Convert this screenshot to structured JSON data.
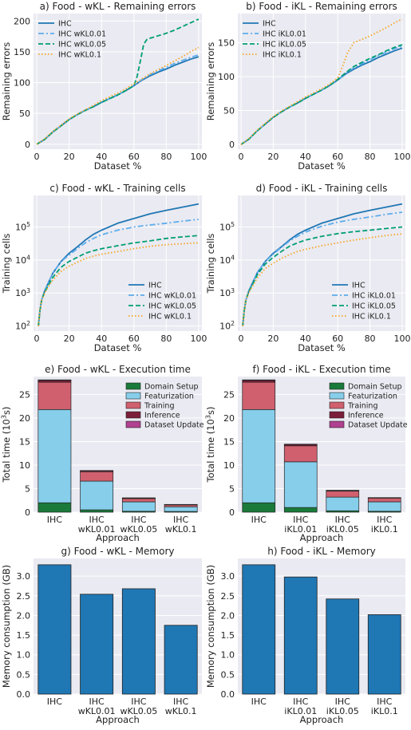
{
  "colors": {
    "plot_bg": "#EAEAF2",
    "grid": "#FFFFFF",
    "IHC": "#1F77B4",
    "KL0.01": "#5DADEC",
    "KL0.05": "#009E73",
    "KL0.1": "#F5A623",
    "domain_setup": "#1A7A3A",
    "featurization": "#87CEEB",
    "training": "#D0606E",
    "inference": "#7B1E3A",
    "dataset_update": "#B04090",
    "memory_bar": "#1F77B4"
  },
  "chart_data": [
    {
      "id": "a",
      "type": "line",
      "title": "a) Food - wKL - Remaining errors",
      "xlabel": "Dataset %",
      "ylabel": "Remaining errors",
      "xlim": [
        -2,
        102
      ],
      "ylim": [
        -8,
        212
      ],
      "xticks": [
        0,
        20,
        40,
        60,
        80,
        100
      ],
      "yticks": [
        0,
        50,
        100,
        150,
        200
      ],
      "grid": true,
      "legend": "top-left",
      "series": [
        {
          "name": "IHC",
          "style": "solid",
          "x": [
            0,
            5,
            10,
            15,
            20,
            25,
            30,
            35,
            40,
            45,
            50,
            55,
            60,
            65,
            70,
            75,
            80,
            85,
            90,
            95,
            100
          ],
          "y": [
            0,
            8,
            20,
            30,
            40,
            48,
            55,
            61,
            68,
            74,
            80,
            87,
            95,
            104,
            111,
            117,
            122,
            128,
            133,
            138,
            142
          ]
        },
        {
          "name": "IHC wKL0.01",
          "style": "dashdot",
          "x": [
            0,
            5,
            10,
            15,
            20,
            25,
            30,
            35,
            40,
            45,
            50,
            55,
            60,
            65,
            70,
            75,
            80,
            85,
            90,
            95,
            100
          ],
          "y": [
            0,
            8,
            20,
            30,
            40,
            48,
            55,
            61,
            68,
            74,
            80,
            87,
            95,
            105,
            113,
            119,
            125,
            131,
            136,
            141,
            145
          ]
        },
        {
          "name": "IHC wKL0.05",
          "style": "dashed",
          "x": [
            0,
            5,
            10,
            15,
            20,
            25,
            30,
            35,
            40,
            45,
            50,
            55,
            60,
            62,
            64,
            66,
            68,
            70,
            75,
            80,
            85,
            90,
            95,
            100
          ],
          "y": [
            0,
            8,
            20,
            30,
            40,
            48,
            55,
            61,
            68,
            74,
            80,
            87,
            95,
            110,
            135,
            162,
            170,
            172,
            176,
            180,
            185,
            191,
            197,
            203
          ]
        },
        {
          "name": "IHC wKL0.1",
          "style": "dotted",
          "x": [
            0,
            5,
            10,
            15,
            20,
            25,
            30,
            35,
            40,
            45,
            50,
            55,
            60,
            65,
            70,
            75,
            80,
            85,
            90,
            95,
            100
          ],
          "y": [
            0,
            9,
            21,
            31,
            41,
            49,
            56,
            63,
            71,
            77,
            83,
            90,
            98,
            106,
            114,
            121,
            128,
            135,
            142,
            150,
            157
          ]
        }
      ]
    },
    {
      "id": "b",
      "type": "line",
      "title": "b) Food - iKL - Remaining errors",
      "xlabel": "Dataset %",
      "ylabel": "Remaining errors",
      "xlim": [
        -2,
        102
      ],
      "ylim": [
        -7,
        193
      ],
      "xticks": [
        0,
        20,
        40,
        60,
        80,
        100
      ],
      "yticks": [
        0,
        50,
        100,
        150
      ],
      "grid": true,
      "legend": "top-left",
      "series": [
        {
          "name": "IHC",
          "style": "solid",
          "x": [
            0,
            5,
            10,
            15,
            20,
            25,
            30,
            35,
            40,
            45,
            50,
            55,
            60,
            65,
            70,
            75,
            80,
            85,
            90,
            95,
            100
          ],
          "y": [
            0,
            8,
            20,
            30,
            40,
            48,
            55,
            61,
            68,
            74,
            80,
            87,
            95,
            104,
            111,
            117,
            122,
            128,
            133,
            138,
            142
          ]
        },
        {
          "name": "IHC iKL0.01",
          "style": "dashdot",
          "x": [
            0,
            5,
            10,
            15,
            20,
            25,
            30,
            35,
            40,
            45,
            50,
            55,
            60,
            65,
            70,
            75,
            80,
            85,
            90,
            95,
            100
          ],
          "y": [
            0,
            8,
            20,
            30,
            40,
            48,
            55,
            61,
            68,
            74,
            80,
            87,
            95,
            105,
            113,
            119,
            125,
            131,
            136,
            141,
            145
          ]
        },
        {
          "name": "IHC iKL0.05",
          "style": "dashed",
          "x": [
            0,
            5,
            10,
            15,
            20,
            25,
            30,
            35,
            40,
            45,
            50,
            55,
            60,
            65,
            70,
            75,
            80,
            85,
            90,
            95,
            100
          ],
          "y": [
            0,
            8,
            20,
            30,
            40,
            48,
            55,
            61,
            68,
            74,
            80,
            87,
            96,
            106,
            115,
            121,
            127,
            132,
            138,
            143,
            147
          ]
        },
        {
          "name": "IHC iKL0.1",
          "style": "dotted",
          "x": [
            0,
            5,
            10,
            15,
            20,
            25,
            30,
            35,
            40,
            45,
            50,
            55,
            60,
            63,
            66,
            70,
            75,
            80,
            85,
            90,
            95,
            100
          ],
          "y": [
            0,
            9,
            21,
            31,
            41,
            49,
            56,
            63,
            70,
            76,
            82,
            89,
            98,
            115,
            135,
            150,
            155,
            160,
            166,
            172,
            179,
            185
          ]
        }
      ]
    },
    {
      "id": "c",
      "type": "line",
      "title": "c) Food - wKL - Training cells",
      "xlabel": "Dataset %",
      "ylabel": "Training cells",
      "xlim": [
        -2,
        102
      ],
      "ylim": [
        70,
        900000
      ],
      "yscale": "log",
      "xticks": [
        0,
        20,
        40,
        60,
        80,
        100
      ],
      "yticks": [
        100,
        1000,
        10000,
        100000
      ],
      "ytick_labels": [
        "10^2",
        "10^3",
        "10^4",
        "10^5"
      ],
      "grid": true,
      "legend": "bottom-right",
      "series": [
        {
          "name": "IHC",
          "style": "solid",
          "x": [
            1,
            2,
            3,
            5,
            8,
            10,
            15,
            20,
            25,
            30,
            35,
            40,
            50,
            60,
            70,
            80,
            90,
            100
          ],
          "y": [
            100,
            300,
            600,
            1200,
            2500,
            4000,
            9000,
            16000,
            25000,
            40000,
            60000,
            80000,
            130000,
            180000,
            250000,
            320000,
            400000,
            500000
          ]
        },
        {
          "name": "IHC wKL0.01",
          "style": "dashdot",
          "x": [
            1,
            2,
            3,
            5,
            8,
            10,
            15,
            20,
            25,
            30,
            35,
            40,
            50,
            60,
            70,
            80,
            90,
            100
          ],
          "y": [
            100,
            300,
            600,
            1200,
            2500,
            4000,
            9000,
            14000,
            22000,
            33000,
            45000,
            58000,
            80000,
            100000,
            115000,
            130000,
            150000,
            170000
          ]
        },
        {
          "name": "IHC wKL0.05",
          "style": "dashed",
          "x": [
            1,
            2,
            3,
            5,
            8,
            10,
            15,
            20,
            25,
            30,
            35,
            40,
            50,
            60,
            70,
            80,
            90,
            100
          ],
          "y": [
            100,
            300,
            600,
            1100,
            2000,
            3000,
            6000,
            9000,
            12000,
            16000,
            19000,
            22000,
            27000,
            33000,
            38000,
            45000,
            50000,
            55000
          ]
        },
        {
          "name": "IHC wKL0.1",
          "style": "dotted",
          "x": [
            1,
            2,
            3,
            5,
            8,
            10,
            15,
            20,
            25,
            30,
            35,
            40,
            50,
            60,
            70,
            80,
            90,
            100
          ],
          "y": [
            100,
            300,
            600,
            1000,
            1800,
            2500,
            4500,
            6500,
            8500,
            11000,
            13000,
            15000,
            18000,
            22000,
            26000,
            29000,
            31000,
            33000
          ]
        }
      ]
    },
    {
      "id": "d",
      "type": "line",
      "title": "d) Food - iKL - Training cells",
      "xlabel": "Dataset %",
      "ylabel": "Training cells",
      "xlim": [
        -2,
        102
      ],
      "ylim": [
        70,
        900000
      ],
      "yscale": "log",
      "xticks": [
        0,
        20,
        40,
        60,
        80,
        100
      ],
      "yticks": [
        100,
        1000,
        10000,
        100000
      ],
      "ytick_labels": [
        "10^2",
        "10^3",
        "10^4",
        "10^5"
      ],
      "grid": true,
      "legend": "bottom-right",
      "series": [
        {
          "name": "IHC",
          "style": "solid",
          "x": [
            1,
            2,
            3,
            5,
            8,
            10,
            15,
            20,
            25,
            30,
            35,
            40,
            50,
            60,
            70,
            80,
            90,
            100
          ],
          "y": [
            100,
            300,
            600,
            1200,
            2500,
            4000,
            9000,
            16000,
            25000,
            40000,
            60000,
            80000,
            130000,
            180000,
            250000,
            320000,
            400000,
            500000
          ]
        },
        {
          "name": "IHC iKL0.01",
          "style": "dashdot",
          "x": [
            1,
            2,
            3,
            5,
            8,
            10,
            15,
            20,
            25,
            30,
            35,
            40,
            50,
            60,
            70,
            80,
            90,
            100
          ],
          "y": [
            100,
            300,
            600,
            1200,
            2500,
            4000,
            9000,
            15000,
            24000,
            37000,
            52000,
            70000,
            105000,
            140000,
            170000,
            200000,
            240000,
            280000
          ]
        },
        {
          "name": "IHC iKL0.05",
          "style": "dashed",
          "x": [
            1,
            2,
            3,
            5,
            8,
            10,
            15,
            20,
            25,
            30,
            35,
            40,
            50,
            60,
            70,
            80,
            90,
            100
          ],
          "y": [
            100,
            300,
            600,
            1150,
            2200,
            3500,
            7500,
            12000,
            18000,
            26000,
            33000,
            40000,
            52000,
            63000,
            72000,
            80000,
            90000,
            100000
          ]
        },
        {
          "name": "IHC iKL0.1",
          "style": "dotted",
          "x": [
            1,
            2,
            3,
            5,
            8,
            10,
            15,
            20,
            25,
            30,
            35,
            40,
            50,
            60,
            70,
            80,
            90,
            100
          ],
          "y": [
            100,
            300,
            600,
            1050,
            1900,
            2800,
            5500,
            8000,
            11000,
            14500,
            18000,
            21000,
            27000,
            33000,
            40000,
            47000,
            55000,
            62000
          ]
        }
      ]
    },
    {
      "id": "e",
      "type": "bar",
      "stacked": true,
      "title": "e) Food - wKL - Execution time",
      "xlabel": "Approach",
      "ylabel": "Total time (10^3s)",
      "ylim": [
        0,
        28.8
      ],
      "yticks": [
        0,
        5,
        10,
        15,
        20,
        25
      ],
      "categories": [
        [
          "IHC"
        ],
        [
          "IHC",
          "wKL0.01"
        ],
        [
          "IHC",
          "wKL0.05"
        ],
        [
          "IHC",
          "wKL0.1"
        ]
      ],
      "legend": "top-right",
      "series": [
        {
          "name": "Domain Setup",
          "values": [
            2.0,
            0.5,
            0.2,
            0.15
          ]
        },
        {
          "name": "Featurization",
          "values": [
            19.8,
            6.1,
            2.0,
            1.0
          ]
        },
        {
          "name": "Training",
          "values": [
            5.8,
            2.0,
            0.7,
            0.4
          ]
        },
        {
          "name": "Inference",
          "values": [
            0.4,
            0.2,
            0.1,
            0.05
          ]
        },
        {
          "name": "Dataset Update",
          "values": [
            0.1,
            0.05,
            0.05,
            0.05
          ]
        }
      ]
    },
    {
      "id": "f",
      "type": "bar",
      "stacked": true,
      "title": "f) Food - iKL - Execution time",
      "xlabel": "Approach",
      "ylabel": "Total time (10^3s)",
      "ylim": [
        0,
        28.8
      ],
      "yticks": [
        0,
        5,
        10,
        15,
        20,
        25
      ],
      "categories": [
        [
          "IHC"
        ],
        [
          "IHC",
          "iKL0.01"
        ],
        [
          "IHC",
          "iKL0.05"
        ],
        [
          "IHC",
          "iKL0.1"
        ]
      ],
      "legend": "top-right",
      "series": [
        {
          "name": "Domain Setup",
          "values": [
            2.0,
            1.0,
            0.3,
            0.2
          ]
        },
        {
          "name": "Featurization",
          "values": [
            19.8,
            9.7,
            2.9,
            2.0
          ]
        },
        {
          "name": "Training",
          "values": [
            5.8,
            3.4,
            1.3,
            0.8
          ]
        },
        {
          "name": "Inference",
          "values": [
            0.4,
            0.3,
            0.1,
            0.05
          ]
        },
        {
          "name": "Dataset Update",
          "values": [
            0.1,
            0.05,
            0.05,
            0.05
          ]
        }
      ]
    },
    {
      "id": "g",
      "type": "bar",
      "title": "g) Food - wKL - Memory",
      "xlabel": "Approach",
      "ylabel": "Memory consumption (GB)",
      "ylim": [
        0,
        3.45
      ],
      "yticks": [
        0.0,
        0.5,
        1.0,
        1.5,
        2.0,
        2.5,
        3.0
      ],
      "categories": [
        [
          "IHC"
        ],
        [
          "IHC",
          "wKL0.01"
        ],
        [
          "IHC",
          "wKL0.05"
        ],
        [
          "IHC",
          "wKL0.1"
        ]
      ],
      "values": [
        3.29,
        2.54,
        2.68,
        1.75
      ]
    },
    {
      "id": "h",
      "type": "bar",
      "title": "h) Food - iKL - Memory",
      "xlabel": "Approach",
      "ylabel": "Memory consumption (GB)",
      "ylim": [
        0,
        3.45
      ],
      "yticks": [
        0.0,
        0.5,
        1.0,
        1.5,
        2.0,
        2.5,
        3.0
      ],
      "categories": [
        [
          "IHC"
        ],
        [
          "IHC",
          "iKL0.01"
        ],
        [
          "IHC",
          "iKL0.05"
        ],
        [
          "IHC",
          "iKL0.1"
        ]
      ],
      "values": [
        3.29,
        2.98,
        2.42,
        2.02
      ]
    }
  ]
}
